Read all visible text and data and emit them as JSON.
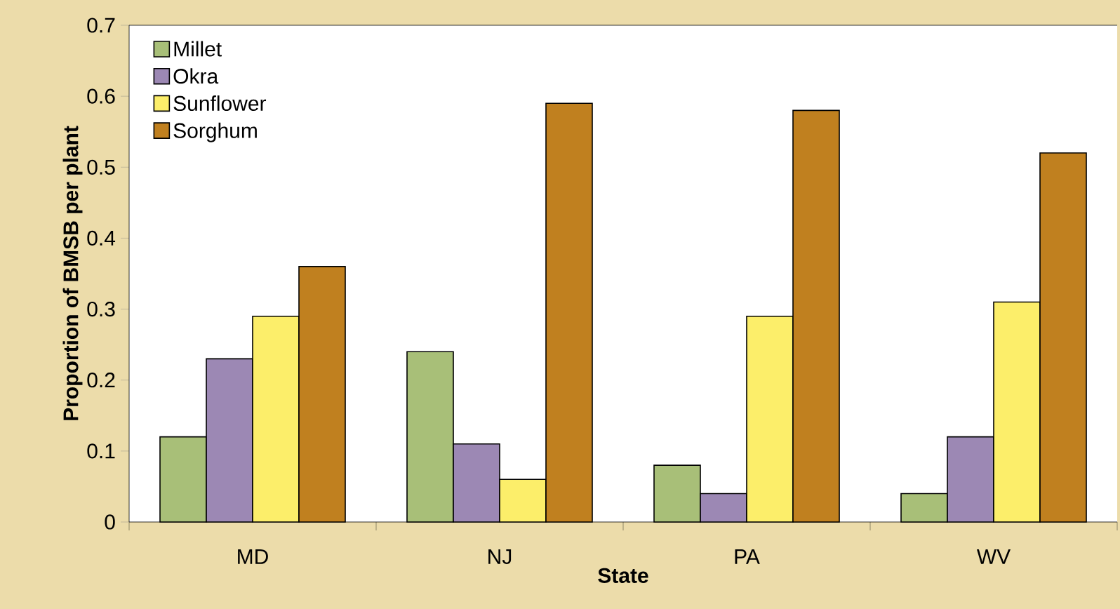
{
  "chart_data": {
    "type": "bar",
    "xlabel": "State",
    "ylabel": "Proportion of BMSB per plant",
    "categories": [
      "MD",
      "NJ",
      "PA",
      "WV"
    ],
    "series": [
      {
        "name": "Millet",
        "color": "#a8bf78",
        "values": [
          0.12,
          0.24,
          0.08,
          0.04
        ]
      },
      {
        "name": "Okra",
        "color": "#9c88b4",
        "values": [
          0.23,
          0.11,
          0.04,
          0.12
        ]
      },
      {
        "name": "Sunflower",
        "color": "#fcee6a",
        "values": [
          0.29,
          0.06,
          0.29,
          0.31
        ]
      },
      {
        "name": "Sorghum",
        "color": "#c0801f",
        "values": [
          0.36,
          0.59,
          0.58,
          0.52
        ]
      }
    ],
    "ylim": [
      0,
      0.7
    ],
    "yticks": [
      0,
      0.1,
      0.2,
      0.3,
      0.4,
      0.5,
      0.6,
      0.7
    ],
    "grid": false,
    "legend": "top left"
  }
}
